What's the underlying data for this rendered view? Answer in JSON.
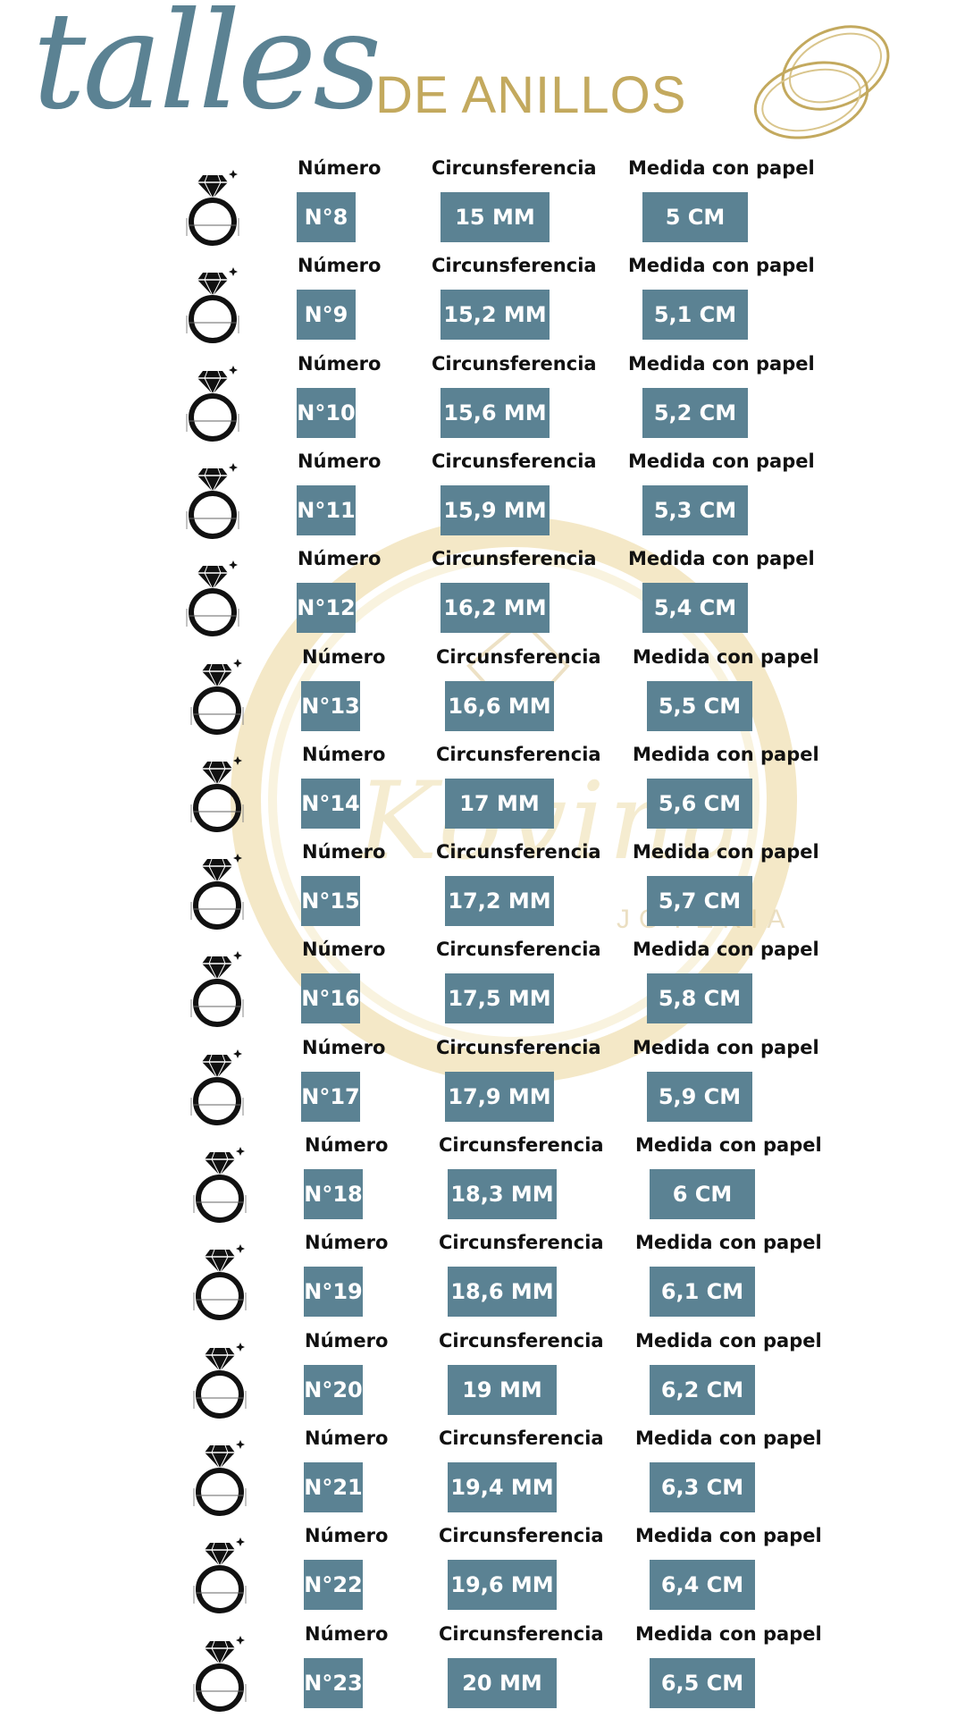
{
  "header": {
    "title_script": "talles",
    "title_sub": "DE ANILLOS"
  },
  "watermark": {
    "brand": "Kovina",
    "sub": "JOYERIA"
  },
  "headers": {
    "number": "Número",
    "circumference": "Circunsferencia",
    "paper": "Medida con papel"
  },
  "sizes": [
    {
      "number": "N°8",
      "circumference": "15 MM",
      "paper": "5 CM"
    },
    {
      "number": "N°9",
      "circumference": "15,2 MM",
      "paper": "5,1 CM"
    },
    {
      "number": "N°10",
      "circumference": "15,6 MM",
      "paper": "5,2 CM"
    },
    {
      "number": "N°11",
      "circumference": "15,9 MM",
      "paper": "5,3 CM"
    },
    {
      "number": "N°12",
      "circumference": "16,2 MM",
      "paper": "5,4 CM"
    },
    {
      "number": "N°13",
      "circumference": "16,6 MM",
      "paper": "5,5 CM"
    },
    {
      "number": "N°14",
      "circumference": "17 MM",
      "paper": "5,6 CM"
    },
    {
      "number": "N°15",
      "circumference": "17,2 MM",
      "paper": "5,7 CM"
    },
    {
      "number": "N°16",
      "circumference": "17,5 MM",
      "paper": "5,8 CM"
    },
    {
      "number": "N°17",
      "circumference": "17,9 MM",
      "paper": "5,9 CM"
    },
    {
      "number": "N°18",
      "circumference": "18,3 MM",
      "paper": "6 CM"
    },
    {
      "number": "N°19",
      "circumference": "18,6 MM",
      "paper": "6,1 CM"
    },
    {
      "number": "N°20",
      "circumference": "19 MM",
      "paper": "6,2 CM"
    },
    {
      "number": "N°21",
      "circumference": "19,4 MM",
      "paper": "6,3 CM"
    },
    {
      "number": "N°22",
      "circumference": "19,6 MM",
      "paper": "6,4 CM"
    },
    {
      "number": "N°23",
      "circumference": "20 MM",
      "paper": "6,5 CM"
    }
  ],
  "colors": {
    "box": "#5b8293",
    "title_script": "#5b8293",
    "title_sub": "#c3a95e",
    "watermark": "#e2c878"
  },
  "icons": {
    "rings": "wedding-rings-icon",
    "ring": "diamond-ring-icon"
  }
}
